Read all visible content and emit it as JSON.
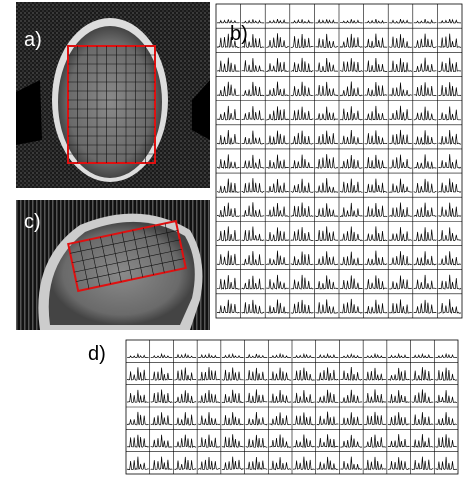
{
  "labels": {
    "a": "a)",
    "b": "b)",
    "c": "c)",
    "d": "d)"
  }
}
